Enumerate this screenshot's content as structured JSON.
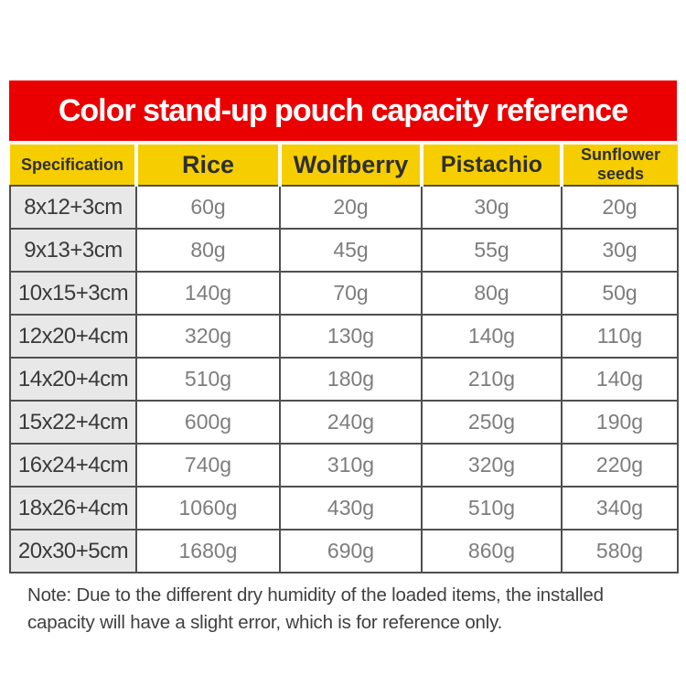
{
  "title": "Color stand-up pouch capacity reference",
  "note": "Note: Due to the different dry humidity of the loaded items, the installed capacity will have a slight error, which is for reference only.",
  "colors": {
    "banner_bg": "#eb0000",
    "banner_text": "#ffffff",
    "header_bg": "#f6ce00",
    "header_text": "#2f2f2f",
    "spec_cell_bg": "#e8e8e8",
    "spec_text": "#3a3a3a",
    "value_text": "#7d7d7d",
    "grid_border": "#4f4f4f"
  },
  "chart_data": {
    "type": "table",
    "title": "Color stand-up pouch capacity reference",
    "columns": [
      "Specification",
      "Rice",
      "Wolfberry",
      "Pistachio",
      "Sunflower seeds"
    ],
    "rows": [
      [
        "8x12+3cm",
        "60g",
        "20g",
        "30g",
        "20g"
      ],
      [
        "9x13+3cm",
        "80g",
        "45g",
        "55g",
        "30g"
      ],
      [
        "10x15+3cm",
        "140g",
        "70g",
        "80g",
        "50g"
      ],
      [
        "12x20+4cm",
        "320g",
        "130g",
        "140g",
        "110g"
      ],
      [
        "14x20+4cm",
        "510g",
        "180g",
        "210g",
        "140g"
      ],
      [
        "15x22+4cm",
        "600g",
        "240g",
        "250g",
        "190g"
      ],
      [
        "16x24+4cm",
        "740g",
        "310g",
        "320g",
        "220g"
      ],
      [
        "18x26+4cm",
        "1060g",
        "430g",
        "510g",
        "340g"
      ],
      [
        "20x30+5cm",
        "1680g",
        "690g",
        "860g",
        "580g"
      ]
    ],
    "note": "Note: Due to the different dry humidity of the loaded items, the installed capacity will have a slight error, which is for reference only.",
    "legend": false,
    "grid": true
  }
}
